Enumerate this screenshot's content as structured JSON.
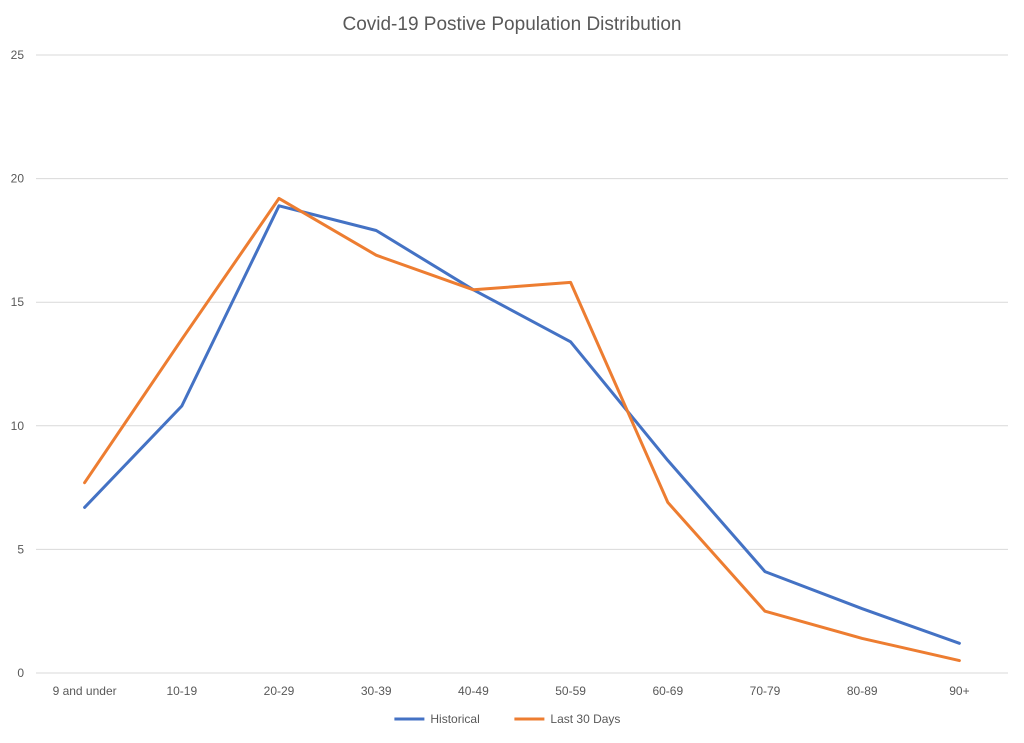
{
  "chart_data": {
    "type": "line",
    "title": "Covid-19 Postive Population Distribution",
    "xlabel": "",
    "ylabel": "",
    "categories": [
      "9 and under",
      "10-19",
      "20-29",
      "30-39",
      "40-49",
      "50-59",
      "60-69",
      "70-79",
      "80-89",
      "90+"
    ],
    "ylim": [
      0,
      25
    ],
    "yticks": [
      0,
      5,
      10,
      15,
      20,
      25
    ],
    "grid": true,
    "legend_position": "bottom",
    "series": [
      {
        "name": "Historical",
        "color": "#4472c4",
        "values": [
          6.7,
          10.8,
          18.9,
          17.9,
          15.5,
          13.4,
          8.6,
          4.1,
          2.6,
          1.2
        ]
      },
      {
        "name": "Last 30 Days",
        "color": "#ed7d31",
        "values": [
          7.7,
          13.5,
          19.2,
          16.9,
          15.5,
          15.8,
          6.9,
          2.5,
          1.4,
          0.5
        ]
      }
    ]
  }
}
